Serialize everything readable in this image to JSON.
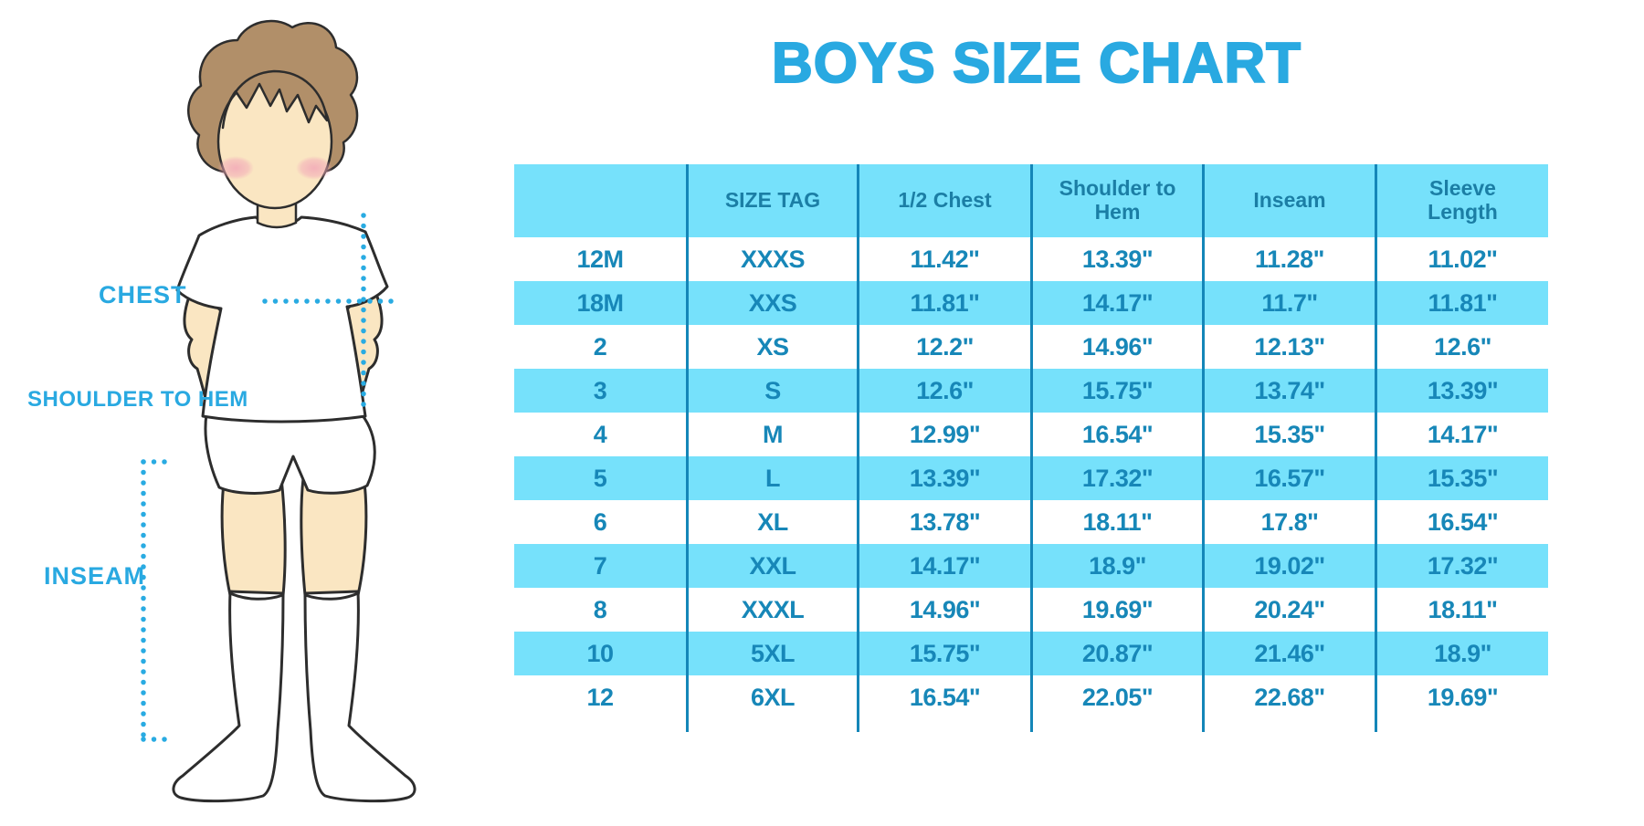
{
  "chart_data": {
    "type": "table",
    "title": "BOYS SIZE CHART",
    "columns": [
      "",
      "SIZE TAG",
      "1/2 Chest",
      "Shoulder to Hem",
      "Inseam",
      "Sleeve Length"
    ],
    "rows": [
      [
        "12M",
        "XXXS",
        "11.42\"",
        "13.39\"",
        "11.28\"",
        "11.02\""
      ],
      [
        "18M",
        "XXS",
        "11.81\"",
        "14.17\"",
        "11.7\"",
        "11.81\""
      ],
      [
        "2",
        "XS",
        "12.2\"",
        "14.96\"",
        "12.13\"",
        "12.6\""
      ],
      [
        "3",
        "S",
        "12.6\"",
        "15.75\"",
        "13.74\"",
        "13.39\""
      ],
      [
        "4",
        "M",
        "12.99\"",
        "16.54\"",
        "15.35\"",
        "14.17\""
      ],
      [
        "5",
        "L",
        "13.39\"",
        "17.32\"",
        "16.57\"",
        "15.35\""
      ],
      [
        "6",
        "XL",
        "13.78\"",
        "18.11\"",
        "17.8\"",
        "16.54\""
      ],
      [
        "7",
        "XXL",
        "14.17\"",
        "18.9\"",
        "19.02\"",
        "17.32\""
      ],
      [
        "8",
        "XXXL",
        "14.96\"",
        "19.69\"",
        "20.24\"",
        "18.11\""
      ],
      [
        "10",
        "5XL",
        "15.75\"",
        "20.87\"",
        "21.46\"",
        "18.9\""
      ],
      [
        "12",
        "6XL",
        "16.54\"",
        "22.05\"",
        "22.68\"",
        "19.69\""
      ]
    ],
    "row_striping": "white / light-blue alternating, header light-blue",
    "legend_position": "none",
    "grid": "vertical column separators only"
  },
  "figure": {
    "labels": {
      "chest": "CHEST",
      "shoulder_to_hem": "SHOULDER TO HEM",
      "inseam": "INSEAM"
    }
  },
  "colors": {
    "title_blue": "#29A9E1",
    "cell_blue": "#76E1FB",
    "separator_blue": "#1486B8",
    "header_text": "#1B7EA5",
    "data_text": "#1787B8",
    "dotted_line": "#29ABE2",
    "skin": "#FAE6C2",
    "hair": "#B18F69",
    "blush": "#F2ABB9",
    "outline": "#2D2D2D"
  }
}
